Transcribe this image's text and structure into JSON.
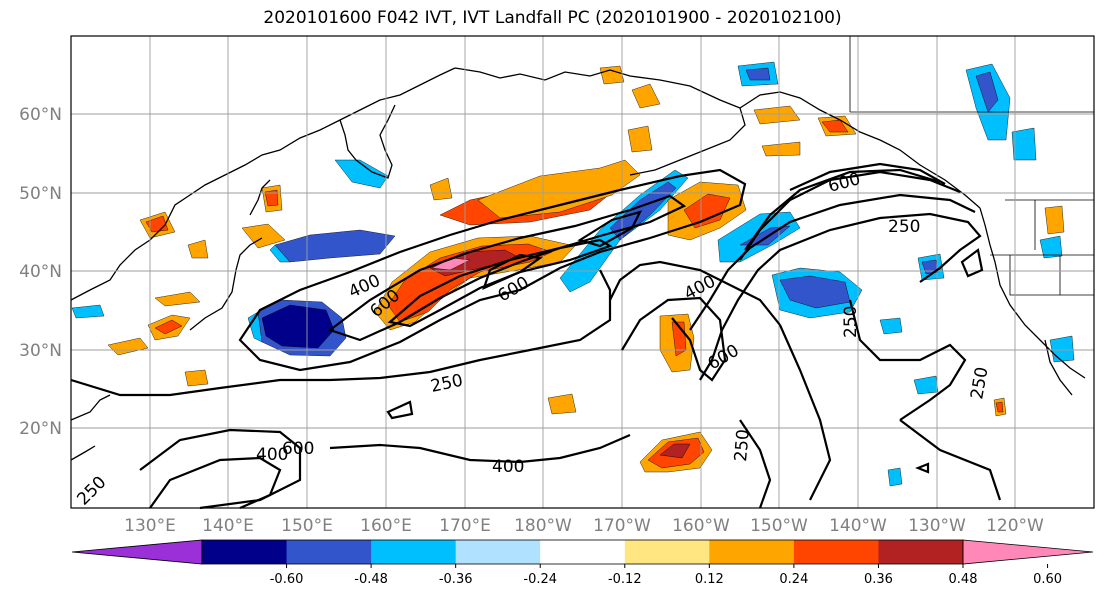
{
  "title": "2020101600 F042 IVT, IVT Landfall PC (2020101900 - 2020102100)",
  "map": {
    "lat_labels": [
      "60°N",
      "50°N",
      "40°N",
      "30°N",
      "20°N"
    ],
    "lon_labels": [
      "130°E",
      "140°E",
      "150°E",
      "160°E",
      "170°E",
      "180°W",
      "170°W",
      "160°W",
      "150°W",
      "140°W",
      "130°W",
      "120°W"
    ],
    "label_color": "#808080",
    "grid_color": "#9e9e9e"
  },
  "contours": {
    "labels": [
      {
        "text": "600",
        "key": "nw_600"
      },
      {
        "text": "400",
        "key": "nw_400"
      },
      {
        "text": "600",
        "key": "jet_600"
      },
      {
        "text": "250",
        "key": "s_250"
      },
      {
        "text": "400",
        "key": "e_400"
      },
      {
        "text": "600",
        "key": "e_600"
      },
      {
        "text": "600",
        "key": "ne_600"
      },
      {
        "text": "250",
        "key": "ne_250"
      },
      {
        "text": "250",
        "key": "ee_250"
      },
      {
        "text": "250",
        "key": "se_250"
      },
      {
        "text": "250",
        "key": "sc_250"
      },
      {
        "text": "400",
        "key": "sw_400"
      },
      {
        "text": "600",
        "key": "sw_600"
      },
      {
        "text": "400",
        "key": "sm_400"
      },
      {
        "text": "250",
        "key": "corner_250"
      }
    ]
  },
  "colorbar": {
    "colors": [
      "#9b30d9",
      "#00008b",
      "#3355cc",
      "#00bfff",
      "#b0e2ff",
      "#ffffff",
      "#ffe680",
      "#ffa500",
      "#ff4500",
      "#b22222",
      "#ff88b8"
    ],
    "ticks": [
      "-0.60",
      "-0.48",
      "-0.36",
      "-0.24",
      "-0.12",
      "0.12",
      "0.24",
      "0.36",
      "0.48",
      "0.60"
    ]
  }
}
